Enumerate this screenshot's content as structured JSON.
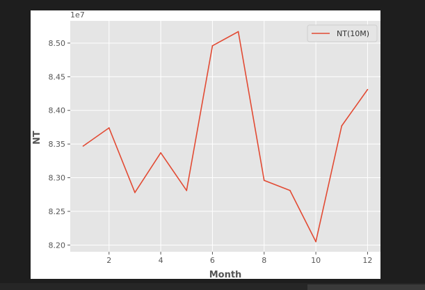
{
  "chart_data": {
    "type": "line",
    "title": "",
    "xlabel": "Month",
    "ylabel": "NT",
    "offset_label": "1e7",
    "xlim": [
      0.5,
      12.5
    ],
    "ylim": [
      8.19,
      8.533
    ],
    "xticks": [
      2,
      4,
      6,
      8,
      10,
      12
    ],
    "xtick_labels": [
      "2",
      "4",
      "6",
      "8",
      "10",
      "12"
    ],
    "yticks": [
      8.2,
      8.25,
      8.3,
      8.35,
      8.4,
      8.45,
      8.5
    ],
    "ytick_labels": [
      "8.20",
      "8.25",
      "8.30",
      "8.35",
      "8.40",
      "8.45",
      "8.50"
    ],
    "grid": true,
    "legend_position": "top-right",
    "style": "ggplot",
    "series": [
      {
        "name": "NT(10M)",
        "color": "#E24A33",
        "x": [
          1,
          2,
          3,
          4,
          5,
          6,
          7,
          8,
          9,
          10,
          11,
          12
        ],
        "values": [
          8.347,
          8.374,
          8.278,
          8.337,
          8.281,
          8.496,
          8.517,
          8.296,
          8.281,
          8.205,
          8.377,
          8.431
        ]
      }
    ]
  }
}
